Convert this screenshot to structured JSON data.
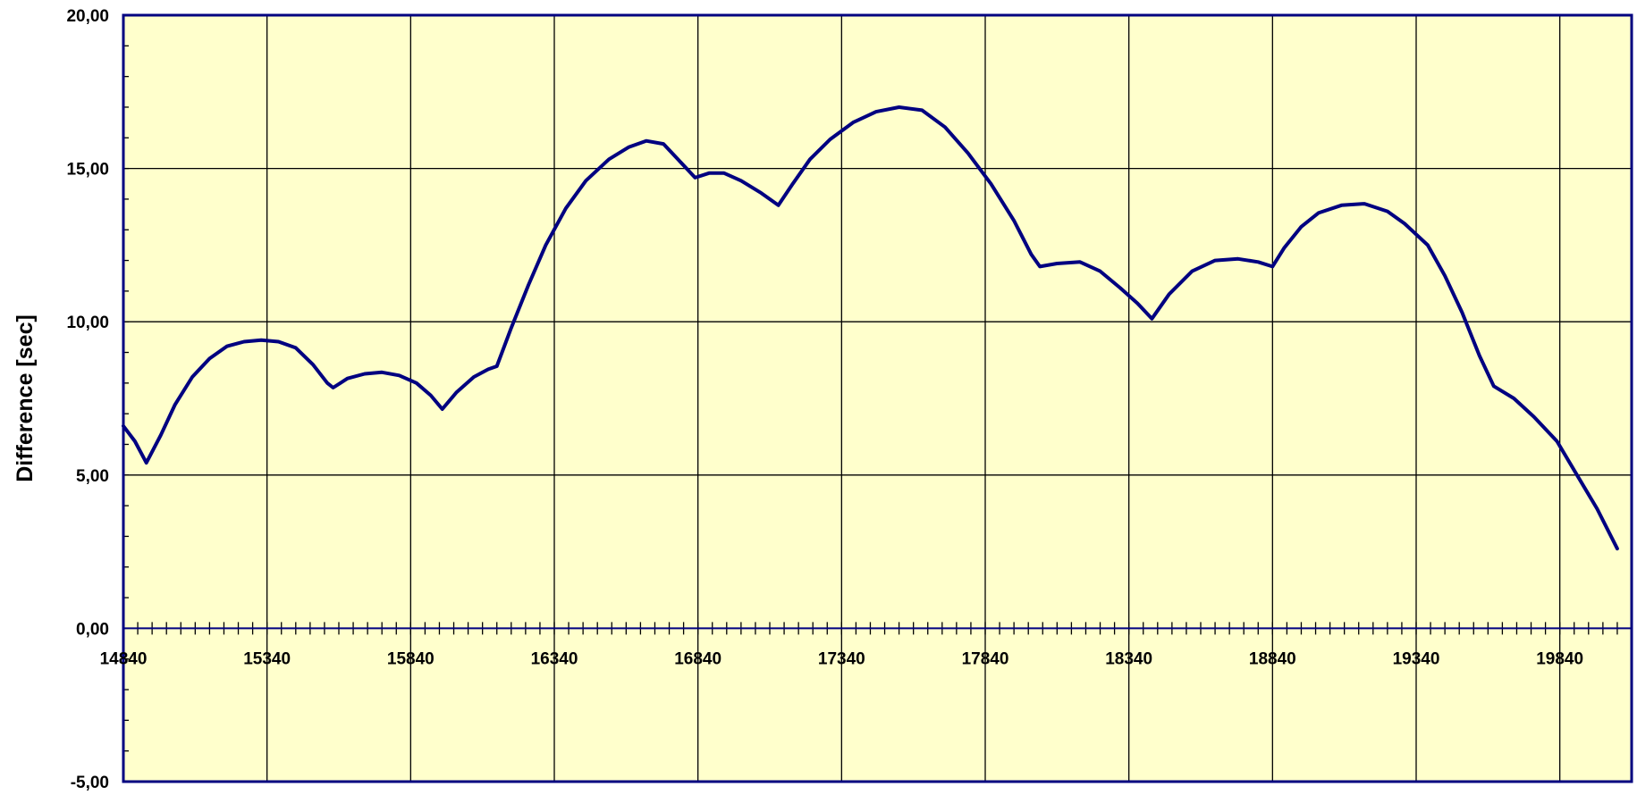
{
  "chart_data": {
    "type": "line",
    "title": "",
    "xlabel": "",
    "ylabel": "Difference [sec]",
    "xlim": [
      14840,
      20090
    ],
    "ylim": [
      -5,
      20
    ],
    "x_ticks": [
      14840,
      15340,
      15840,
      16340,
      16840,
      17340,
      17840,
      18340,
      18840,
      19340,
      19840
    ],
    "x_tick_labels": [
      "14840",
      "15340",
      "15840",
      "16340",
      "16840",
      "17340",
      "17840",
      "18340",
      "18840",
      "19340",
      "19840"
    ],
    "y_ticks": [
      -5,
      0,
      5,
      10,
      15,
      20
    ],
    "y_tick_labels": [
      "-5,00",
      "0,00",
      "5,00",
      "10,00",
      "15,00",
      "20,00"
    ],
    "grid": true,
    "legend": "none",
    "colors": {
      "plot_background": "#ffffcc",
      "line": "#000080",
      "grid": "#000000",
      "frame": "#000080"
    },
    "series": [
      {
        "values": [
          [
            14840,
            6.6
          ],
          [
            14880,
            6.1
          ],
          [
            14920,
            5.4
          ],
          [
            14970,
            6.3
          ],
          [
            15020,
            7.3
          ],
          [
            15080,
            8.2
          ],
          [
            15140,
            8.8
          ],
          [
            15200,
            9.2
          ],
          [
            15260,
            9.35
          ],
          [
            15320,
            9.4
          ],
          [
            15380,
            9.35
          ],
          [
            15440,
            9.15
          ],
          [
            15500,
            8.6
          ],
          [
            15550,
            8.0
          ],
          [
            15570,
            7.85
          ],
          [
            15620,
            8.15
          ],
          [
            15680,
            8.3
          ],
          [
            15740,
            8.35
          ],
          [
            15800,
            8.25
          ],
          [
            15860,
            8.0
          ],
          [
            15910,
            7.6
          ],
          [
            15950,
            7.15
          ],
          [
            16000,
            7.7
          ],
          [
            16060,
            8.2
          ],
          [
            16110,
            8.45
          ],
          [
            16140,
            8.55
          ],
          [
            16190,
            9.8
          ],
          [
            16250,
            11.2
          ],
          [
            16310,
            12.5
          ],
          [
            16380,
            13.7
          ],
          [
            16450,
            14.6
          ],
          [
            16530,
            15.3
          ],
          [
            16600,
            15.7
          ],
          [
            16660,
            15.9
          ],
          [
            16720,
            15.8
          ],
          [
            16770,
            15.3
          ],
          [
            16830,
            14.7
          ],
          [
            16880,
            14.85
          ],
          [
            16930,
            14.85
          ],
          [
            16990,
            14.6
          ],
          [
            17060,
            14.2
          ],
          [
            17120,
            13.8
          ],
          [
            17170,
            14.5
          ],
          [
            17230,
            15.3
          ],
          [
            17300,
            15.95
          ],
          [
            17380,
            16.5
          ],
          [
            17460,
            16.85
          ],
          [
            17540,
            17.0
          ],
          [
            17620,
            16.9
          ],
          [
            17700,
            16.35
          ],
          [
            17780,
            15.5
          ],
          [
            17860,
            14.5
          ],
          [
            17940,
            13.3
          ],
          [
            18000,
            12.2
          ],
          [
            18030,
            11.8
          ],
          [
            18090,
            11.9
          ],
          [
            18170,
            11.95
          ],
          [
            18240,
            11.65
          ],
          [
            18310,
            11.1
          ],
          [
            18370,
            10.6
          ],
          [
            18420,
            10.1
          ],
          [
            18480,
            10.9
          ],
          [
            18560,
            11.65
          ],
          [
            18640,
            12.0
          ],
          [
            18720,
            12.05
          ],
          [
            18790,
            11.95
          ],
          [
            18840,
            11.8
          ],
          [
            18880,
            12.4
          ],
          [
            18940,
            13.1
          ],
          [
            19000,
            13.55
          ],
          [
            19080,
            13.8
          ],
          [
            19160,
            13.85
          ],
          [
            19240,
            13.6
          ],
          [
            19300,
            13.2
          ],
          [
            19380,
            12.5
          ],
          [
            19440,
            11.5
          ],
          [
            19500,
            10.3
          ],
          [
            19560,
            8.9
          ],
          [
            19610,
            7.9
          ],
          [
            19680,
            7.5
          ],
          [
            19750,
            6.9
          ],
          [
            19830,
            6.1
          ],
          [
            19900,
            5.0
          ],
          [
            19970,
            3.9
          ],
          [
            20040,
            2.6
          ]
        ]
      }
    ]
  }
}
